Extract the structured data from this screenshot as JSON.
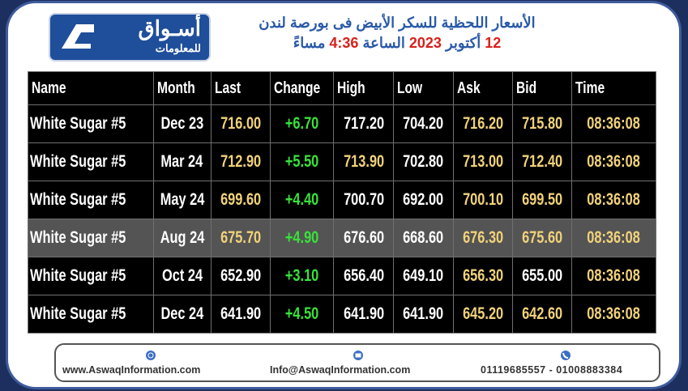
{
  "header": {
    "logo": {
      "name": "أسـواق",
      "sub": "للمعلومات"
    },
    "title": "الأسعار اللحظية للسكر الأبيض فى بورصة لندن",
    "date_line": [
      "12",
      "أكتوبر",
      "2023",
      "الساعة",
      "4:36",
      "مساءً"
    ]
  },
  "table": {
    "columns": [
      "Name",
      "Month",
      "Last",
      "Change",
      "High",
      "Low",
      "Ask",
      "Bid",
      "Time"
    ],
    "rows": [
      [
        "White Sugar #5",
        "Dec 23",
        "716.00",
        "+6.70",
        "717.20",
        "704.20",
        "716.20",
        "715.80",
        "08:36:08"
      ],
      [
        "White Sugar #5",
        "Mar 24",
        "712.90",
        "+5.50",
        "713.90",
        "702.80",
        "713.00",
        "712.40",
        "08:36:08"
      ],
      [
        "White Sugar #5",
        "May 24",
        "699.60",
        "+4.40",
        "700.70",
        "692.00",
        "700.10",
        "699.50",
        "08:36:08"
      ],
      [
        "White Sugar #5",
        "Aug 24",
        "675.70",
        "+4.90",
        "676.60",
        "668.60",
        "676.30",
        "675.60",
        "08:36:08"
      ],
      [
        "White Sugar #5",
        "Oct 24",
        "652.90",
        "+3.10",
        "656.40",
        "649.10",
        "656.30",
        "655.00",
        "08:36:08"
      ],
      [
        "White Sugar #5",
        "Dec 24",
        "641.90",
        "+4.50",
        "641.90",
        "641.90",
        "645.20",
        "642.60",
        "08:36:08"
      ]
    ]
  },
  "footer": {
    "website": "www.AswaqInformation.com",
    "email": "Info@AswaqInformation.com",
    "phones": "01119685557 - 01008883384"
  }
}
